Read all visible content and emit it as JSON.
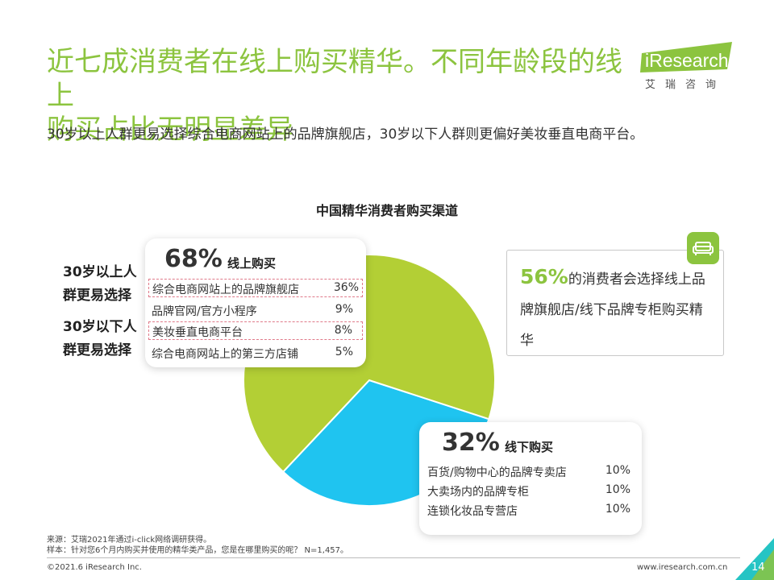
{
  "header": {
    "title_line1": "近七成消费者在线上购买精华。不同年龄段的线上",
    "title_line2": "购买占比无明显差异",
    "subtitle": "30岁以上人群更易选择综合电商网站上的品牌旗舰店，30岁以下人群则更偏好美妆垂直电商平台。",
    "logo_text": "iResearch",
    "logo_cn": "艾瑞咨询"
  },
  "chart_data": {
    "type": "pie",
    "title": "中国精华消费者购买渠道",
    "slices": [
      {
        "name": "线上购买",
        "value": 68,
        "color": "#b3cf35"
      },
      {
        "name": "线下购买",
        "value": 32,
        "color": "#1fc4f0"
      }
    ]
  },
  "online": {
    "pct": "68%",
    "label": "线上购买",
    "rows": [
      {
        "name": "综合电商网站上的品牌旗舰店",
        "value": "36%"
      },
      {
        "name": "品牌官网/官方小程序",
        "value": "9%"
      },
      {
        "name": "美妆垂直电商平台",
        "value": "8%"
      },
      {
        "name": "综合电商网站上的第三方店铺",
        "value": "5%"
      }
    ]
  },
  "offline": {
    "pct": "32%",
    "label": "线下购买",
    "rows": [
      {
        "name": "百货/购物中心的品牌专卖店",
        "value": "10%"
      },
      {
        "name": "大卖场内的品牌专柜",
        "value": "10%"
      },
      {
        "name": "连锁化妆品专营店",
        "value": "10%"
      }
    ]
  },
  "groups": {
    "over30_line1": "30岁以上人",
    "over30_line2": "群更易选择",
    "under30_line1": "30岁以下人",
    "under30_line2": "群更易选择"
  },
  "note": {
    "pct": "56%",
    "text": "的消费者会选择线上品牌旗舰店/线下品牌专柜购买精华"
  },
  "footer": {
    "source": "来源：艾瑞2021年通过i-click网络调研获得。",
    "sample": "样本：针对您6个月内购买并使用的精华类产品，您是在哪里购买的呢？ N=1,457。",
    "copyright": "©2021.6 iResearch Inc.",
    "url": "www.iresearch.com.cn",
    "page": "14"
  },
  "colors": {
    "accent_green": "#8cc43f",
    "pie_green": "#b3cf35",
    "pie_blue": "#1fc4f0",
    "corner_teal": "#25c4c4"
  }
}
